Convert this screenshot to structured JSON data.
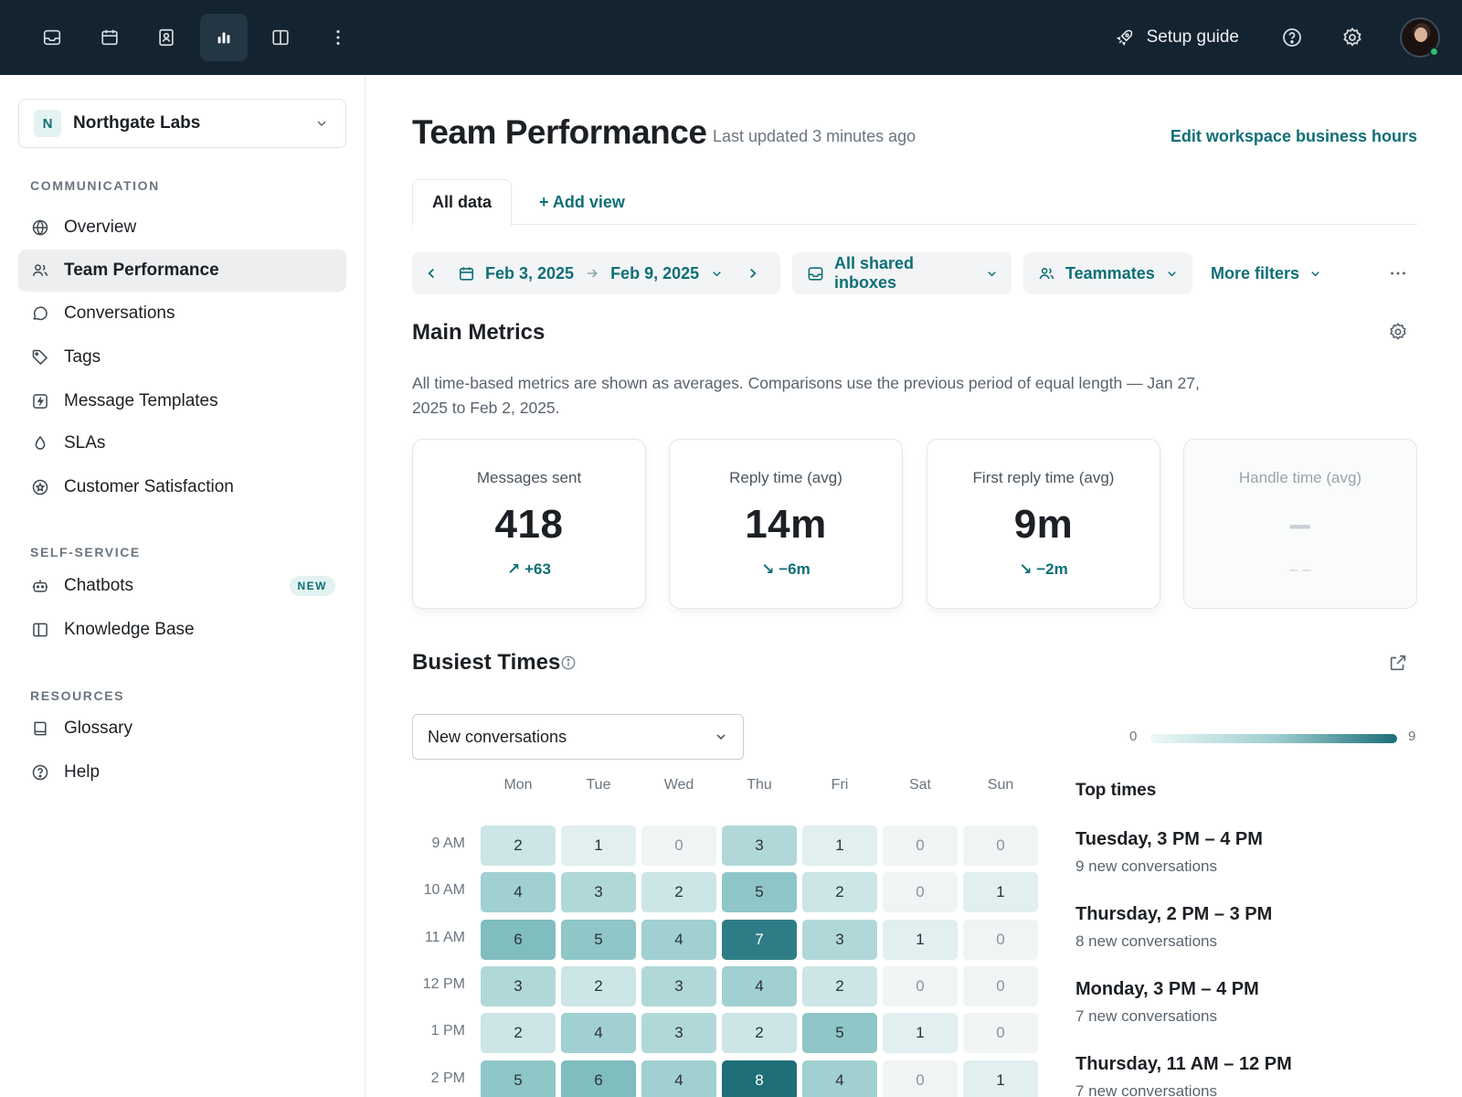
{
  "topbar": {
    "icons": [
      "inbox-icon",
      "calendar-icon",
      "contacts-icon",
      "analytics-icon",
      "split-view-icon",
      "more-vertical-icon"
    ],
    "setup_label": "Setup guide"
  },
  "sidebar": {
    "workspace": {
      "initial": "N",
      "name": "Northgate Labs"
    },
    "sections": [
      {
        "title": "COMMUNICATION",
        "items": [
          {
            "label": "Overview",
            "icon": "globe-icon"
          },
          {
            "label": "Team Performance",
            "icon": "team-icon",
            "active": true
          },
          {
            "label": "Conversations",
            "icon": "chat-bubble-icon"
          },
          {
            "label": "Tags",
            "icon": "tag-icon"
          },
          {
            "label": "Message Templates",
            "icon": "template-bolt-icon"
          },
          {
            "label": "SLAs",
            "icon": "drop-icon"
          },
          {
            "label": "Customer Satisfaction",
            "icon": "star-badge-icon"
          }
        ]
      },
      {
        "title": "SELF-SERVICE",
        "items": [
          {
            "label": "Chatbots",
            "icon": "bot-icon",
            "badge": "NEW"
          },
          {
            "label": "Knowledge Base",
            "icon": "book-open-icon"
          }
        ]
      },
      {
        "title": "RESOURCES",
        "items": [
          {
            "label": "Glossary",
            "icon": "glossary-icon"
          },
          {
            "label": "Help",
            "icon": "help-circle-icon"
          }
        ]
      }
    ]
  },
  "main": {
    "title": "Team Performance",
    "updated": "Last updated 3 minutes ago",
    "edit_link": "Edit workspace business hours",
    "tabs": {
      "active": "All data",
      "add": "+ Add view"
    },
    "filters": {
      "date_start": "Feb 3, 2025",
      "date_end": "Feb 9, 2025",
      "inboxes": "All shared inboxes",
      "teammates": "Teammates",
      "more": "More filters"
    },
    "metrics": {
      "title": "Main Metrics",
      "description": "All time-based metrics are shown as averages. Comparisons use the previous period of equal length — Jan 27, 2025 to Feb 2, 2025.",
      "cards": [
        {
          "label": "Messages sent",
          "value": "418",
          "change": "+63",
          "direction": "up"
        },
        {
          "label": "Reply time (avg)",
          "value": "14m",
          "change": "−6m",
          "direction": "down"
        },
        {
          "label": "First reply time (avg)",
          "value": "9m",
          "change": "−2m",
          "direction": "down"
        },
        {
          "label": "Handle time (avg)",
          "value": "–",
          "change": "– –",
          "direction": "none"
        }
      ]
    },
    "busiest": {
      "title": "Busiest Times",
      "select": "New conversations",
      "legend_min": "0",
      "legend_max": "9",
      "days": [
        "Mon",
        "Tue",
        "Wed",
        "Thu",
        "Fri",
        "Sat",
        "Sun"
      ],
      "hours": [
        "9 AM",
        "10 AM",
        "11 AM",
        "12 PM",
        "1 PM",
        "2 PM"
      ],
      "values": [
        [
          2,
          1,
          0,
          3,
          1,
          0,
          0
        ],
        [
          4,
          3,
          2,
          5,
          2,
          0,
          1
        ],
        [
          6,
          5,
          4,
          7,
          3,
          1,
          0
        ],
        [
          3,
          2,
          3,
          4,
          2,
          0,
          0
        ],
        [
          2,
          4,
          3,
          2,
          5,
          1,
          0
        ],
        [
          5,
          6,
          4,
          8,
          4,
          0,
          1
        ]
      ],
      "top_title": "Top times",
      "top_times": [
        {
          "time": "Tuesday, 3 PM – 4 PM",
          "detail": "9 new conversations"
        },
        {
          "time": "Thursday, 2 PM – 3 PM",
          "detail": "8 new conversations"
        },
        {
          "time": "Monday, 3 PM – 4 PM",
          "detail": "7 new conversations"
        },
        {
          "time": "Thursday, 11 AM – 12 PM",
          "detail": "7 new conversations"
        }
      ]
    }
  }
}
